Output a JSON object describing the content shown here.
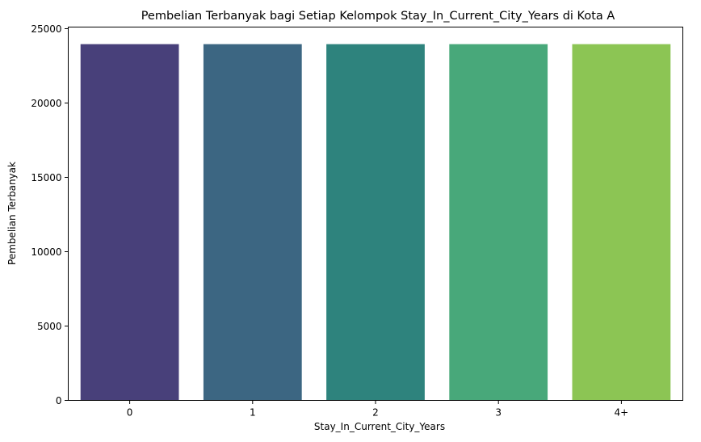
{
  "chart_data": {
    "type": "bar",
    "title": "Pembelian Terbanyak bagi Setiap Kelompok Stay_In_Current_City_Years di Kota A",
    "xlabel": "Stay_In_Current_City_Years",
    "ylabel": "Pembelian Terbanyak",
    "categories": [
      "0",
      "1",
      "2",
      "3",
      "4+"
    ],
    "values": [
      23960,
      23960,
      23960,
      23960,
      23960
    ],
    "ylim": [
      0,
      25000
    ],
    "yticks": [
      0,
      5000,
      10000,
      15000,
      20000,
      25000
    ],
    "grid": false,
    "legend": false,
    "colors": [
      "#48407a",
      "#3c6682",
      "#2e837d",
      "#48a87a",
      "#8cc554"
    ]
  }
}
